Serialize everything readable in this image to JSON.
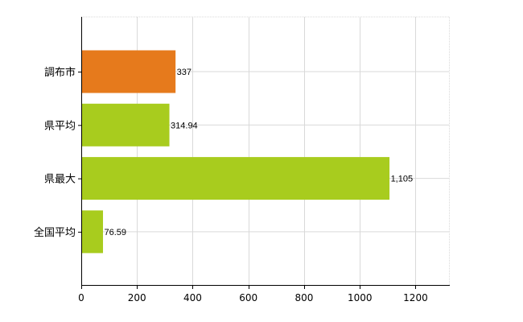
{
  "chart_data": {
    "type": "bar",
    "orientation": "horizontal",
    "categories": [
      "調布市",
      "県平均",
      "県最大",
      "全国平均"
    ],
    "values": [
      337,
      314.94,
      1105,
      76.59
    ],
    "value_labels": [
      "337",
      "314.94",
      "1,105",
      "76.59"
    ],
    "bar_colors": [
      "#e67a1c",
      "#a8cc1e",
      "#a8cc1e",
      "#a8cc1e"
    ],
    "xlim": [
      0,
      1320
    ],
    "xticks": [
      0,
      200,
      400,
      600,
      800,
      1000,
      1200
    ],
    "xtick_labels": [
      "0",
      "200",
      "400",
      "600",
      "800",
      "1000",
      "1200"
    ],
    "grid": true,
    "title": "",
    "xlabel": "",
    "ylabel": ""
  },
  "colors": {
    "highlight_bar": "#e67a1c",
    "default_bar": "#a8cc1e",
    "grid": "#d9d9d9",
    "axis": "#000000"
  }
}
